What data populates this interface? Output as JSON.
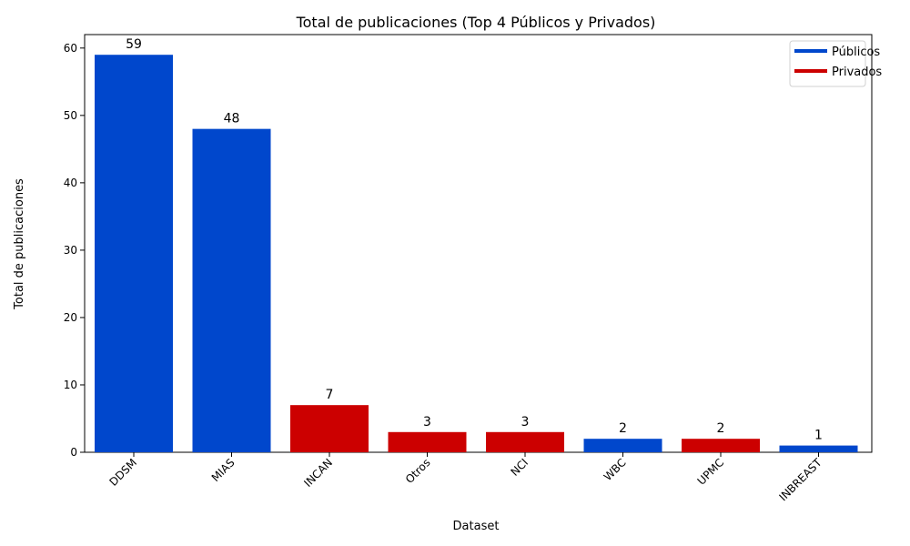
{
  "chart_data": {
    "type": "bar",
    "title": "Total de publicaciones (Top 4 Públicos y Privados)",
    "xlabel": "Dataset",
    "ylabel": "Total de publicaciones",
    "ylim": [
      0,
      62
    ],
    "yticks": [
      0,
      10,
      20,
      30,
      40,
      50,
      60
    ],
    "categories": [
      "DDSM",
      "MIAS",
      "INCAN",
      "Otros",
      "NCI",
      "WBC",
      "UPMC",
      "INBREAST"
    ],
    "values": [
      59,
      48,
      7,
      3,
      3,
      2,
      2,
      1
    ],
    "groups": [
      "Públicos",
      "Públicos",
      "Privados",
      "Privados",
      "Privados",
      "Públicos",
      "Privados",
      "Públicos"
    ],
    "legend": [
      {
        "name": "Públicos",
        "color": "#0047CC"
      },
      {
        "name": "Privados",
        "color": "#CC0000"
      }
    ],
    "legend_position": "top-right",
    "grid": false
  }
}
